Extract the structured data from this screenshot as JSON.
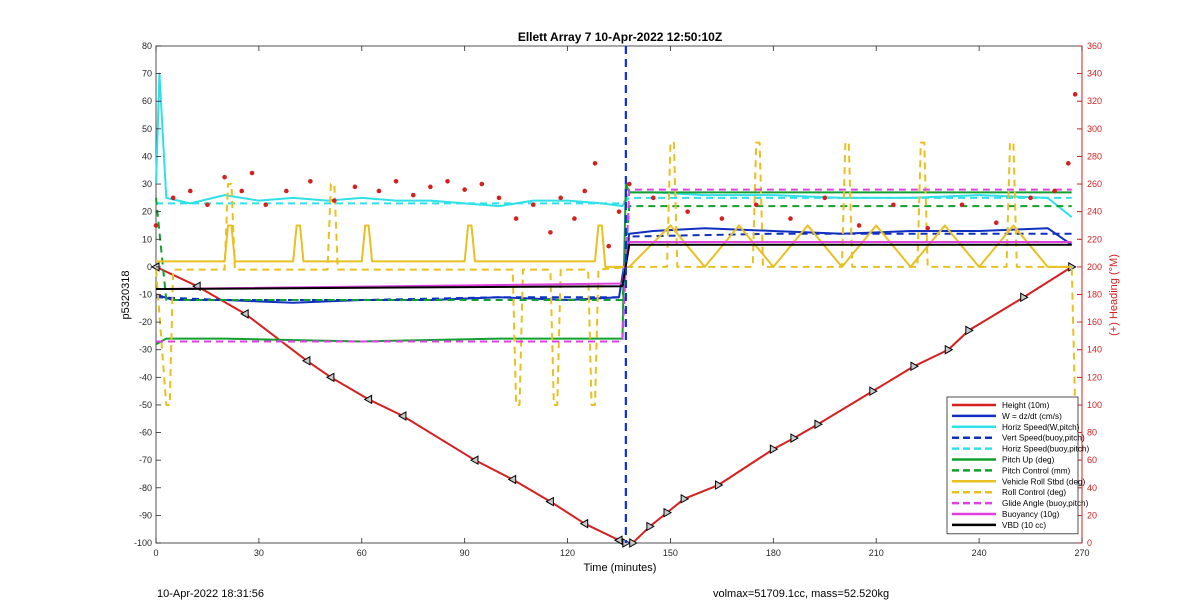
{
  "chart_data": {
    "type": "line",
    "title": "Ellett Array 7 10-Apr-2022 12:50:10Z",
    "xlabel": "Time (minutes)",
    "ylabel": "p5320318",
    "y2label": "(+) Heading (°M)",
    "xlim": [
      0,
      270
    ],
    "ylim": [
      -100,
      80
    ],
    "y2lim": [
      0,
      360
    ],
    "xticks": [
      "0",
      "30",
      "60",
      "90",
      "120",
      "150",
      "180",
      "210",
      "240",
      "270"
    ],
    "yticks": [
      "80",
      "70",
      "60",
      "50",
      "40",
      "30",
      "20",
      "10",
      "0",
      "-10",
      "-20",
      "-30",
      "-40",
      "-50",
      "-60",
      "-70",
      "-80",
      "-90",
      "-100"
    ],
    "y2ticks": [
      "360",
      "340",
      "320",
      "300",
      "280",
      "260",
      "240",
      "220",
      "200",
      "180",
      "160",
      "140",
      "120",
      "100",
      "80",
      "60",
      "40",
      "20",
      "0"
    ],
    "grid": false,
    "legend_position": "bottom-right",
    "series": [
      {
        "name": "Height (10m)",
        "color": "#d62020",
        "style": "solid",
        "x": [
          0,
          12,
          26,
          44,
          51,
          62,
          72,
          93,
          104,
          115,
          125,
          135,
          137,
          139,
          144,
          149,
          154,
          164,
          180,
          186,
          193,
          209,
          221,
          231,
          237,
          253,
          267
        ],
        "y": [
          0,
          -7,
          -17,
          -34,
          -40,
          -48,
          -54,
          -70,
          -77,
          -85,
          -93,
          -99,
          -100,
          -100,
          -94,
          -89,
          -84,
          -79,
          -66,
          -62,
          -57,
          -45,
          -36,
          -30,
          -23,
          -11,
          0
        ]
      },
      {
        "name": "W = dz/dt (cm/s)",
        "color": "#1030c0",
        "style": "solid",
        "x": [
          0,
          5,
          20,
          40,
          60,
          80,
          100,
          120,
          135,
          138,
          145,
          160,
          180,
          200,
          220,
          240,
          260,
          267
        ],
        "y": [
          -10,
          -12,
          -12,
          -13,
          -12,
          -12,
          -11,
          -12,
          -11,
          12,
          13,
          14,
          13,
          12,
          13,
          13,
          14,
          8
        ]
      },
      {
        "name": "Horiz Speed(W,pitch)",
        "color": "#30e0e8",
        "style": "solid",
        "x": [
          0,
          1,
          3,
          10,
          20,
          30,
          40,
          50,
          60,
          70,
          80,
          90,
          100,
          110,
          120,
          130,
          136,
          138,
          145,
          160,
          180,
          200,
          220,
          240,
          260,
          267
        ],
        "y": [
          30,
          70,
          25,
          23,
          26,
          24,
          25,
          24,
          25,
          24,
          24,
          23,
          22,
          24,
          24,
          23,
          22,
          27,
          27,
          26,
          26,
          25,
          25,
          26,
          25,
          18
        ]
      },
      {
        "name": "Vert Speed(buoy,pitch)",
        "color": "#1030c0",
        "style": "dashed",
        "x": [
          0,
          20,
          60,
          100,
          135,
          138,
          180,
          220,
          267
        ],
        "y": [
          -11,
          -12,
          -12,
          -11,
          -11,
          11,
          12,
          12,
          12
        ]
      },
      {
        "name": "Horiz Speed(buoy,pitch)",
        "color": "#30e0e8",
        "style": "dashed",
        "x": [
          0,
          60,
          136,
          138,
          267
        ],
        "y": [
          23,
          23,
          23,
          25,
          25
        ]
      },
      {
        "name": "Pitch Up (deg)",
        "color": "#10a030",
        "style": "solid",
        "x": [
          0,
          3,
          20,
          60,
          100,
          136,
          137,
          138,
          140,
          267
        ],
        "y": [
          -28,
          -26,
          -26,
          -27,
          -26,
          -26,
          30,
          27,
          27,
          27
        ]
      },
      {
        "name": "Pitch Control (mm)",
        "color": "#10a030",
        "style": "dashed",
        "x": [
          0,
          3,
          136,
          138,
          267
        ],
        "y": [
          25,
          -12,
          -12,
          22,
          22
        ]
      },
      {
        "name": "Vehicle Roll Stbd (deg)",
        "color": "#e8c020",
        "style": "solid",
        "x": [
          0,
          20,
          21,
          22,
          23,
          40,
          41,
          42,
          43,
          60,
          61,
          62,
          63,
          90,
          91,
          92,
          93,
          128,
          129,
          130,
          131,
          138,
          150,
          160,
          170,
          180,
          190,
          200,
          210,
          220,
          230,
          240,
          250,
          260,
          267
        ],
        "y": [
          2,
          2,
          15,
          15,
          2,
          2,
          15,
          15,
          2,
          2,
          15,
          15,
          2,
          2,
          15,
          15,
          2,
          2,
          15,
          15,
          0,
          0,
          15,
          0,
          15,
          0,
          15,
          0,
          15,
          0,
          15,
          0,
          15,
          0,
          0
        ]
      },
      {
        "name": "Roll Control (deg)",
        "color": "#e8c020",
        "style": "dashed",
        "x": [
          0,
          3,
          4,
          5,
          20,
          21,
          22,
          23,
          50,
          51,
          52,
          53,
          104,
          105,
          106,
          107,
          115,
          116,
          117,
          118,
          126,
          127,
          128,
          129,
          138,
          149,
          150,
          151,
          152,
          174,
          175,
          176,
          177,
          200,
          201,
          202,
          203,
          222,
          223,
          224,
          225,
          248,
          249,
          250,
          251,
          267,
          268
        ],
        "y": [
          -1,
          -50,
          -50,
          -1,
          -1,
          30,
          30,
          -1,
          -1,
          30,
          30,
          -1,
          -1,
          -50,
          -50,
          -1,
          -1,
          -50,
          -50,
          -1,
          -1,
          -50,
          -50,
          -1,
          0,
          0,
          45,
          45,
          0,
          0,
          45,
          45,
          0,
          0,
          45,
          45,
          0,
          0,
          45,
          45,
          0,
          0,
          45,
          45,
          0,
          0,
          -50
        ]
      },
      {
        "name": "Glide Angle (buoy,pitch)",
        "color": "#e040e0",
        "style": "dashed",
        "x": [
          0,
          3,
          60,
          136,
          138,
          267
        ],
        "y": [
          -27,
          -27,
          -27,
          -27,
          28,
          28
        ]
      },
      {
        "name": "Buoyancy (10g)",
        "color": "#e040e0",
        "style": "solid",
        "x": [
          0,
          3,
          136,
          138,
          267
        ],
        "y": [
          -8,
          -8,
          -6,
          9,
          9
        ]
      },
      {
        "name": "VBD (10 cc)",
        "color": "#000000",
        "style": "solid",
        "x": [
          0,
          3,
          136,
          138,
          267
        ],
        "y": [
          -8,
          -8,
          -7,
          8,
          8
        ]
      },
      {
        "name": "Heading",
        "color": "#d62020",
        "style": "dots",
        "axis": "right",
        "x": [
          0,
          5,
          10,
          15,
          20,
          25,
          28,
          32,
          38,
          45,
          52,
          58,
          65,
          70,
          75,
          80,
          85,
          90,
          95,
          100,
          105,
          110,
          115,
          118,
          122,
          125,
          128,
          132,
          135,
          138,
          145,
          155,
          165,
          175,
          185,
          195,
          205,
          215,
          225,
          235,
          245,
          255,
          262,
          266,
          268
        ],
        "y": [
          230,
          250,
          255,
          245,
          265,
          255,
          268,
          245,
          255,
          262,
          248,
          258,
          255,
          262,
          252,
          258,
          262,
          256,
          260,
          250,
          235,
          245,
          225,
          250,
          235,
          255,
          275,
          215,
          240,
          260,
          250,
          240,
          235,
          245,
          235,
          250,
          230,
          245,
          228,
          245,
          232,
          250,
          255,
          275,
          325
        ]
      }
    ]
  },
  "footer": {
    "timestamp": "10-Apr-2022 18:31:56",
    "summary": "volmax=51709.1cc, mass=52.520kg"
  },
  "colors": {
    "right_axis": "#d62020",
    "apogee_line": "#1030e0"
  }
}
